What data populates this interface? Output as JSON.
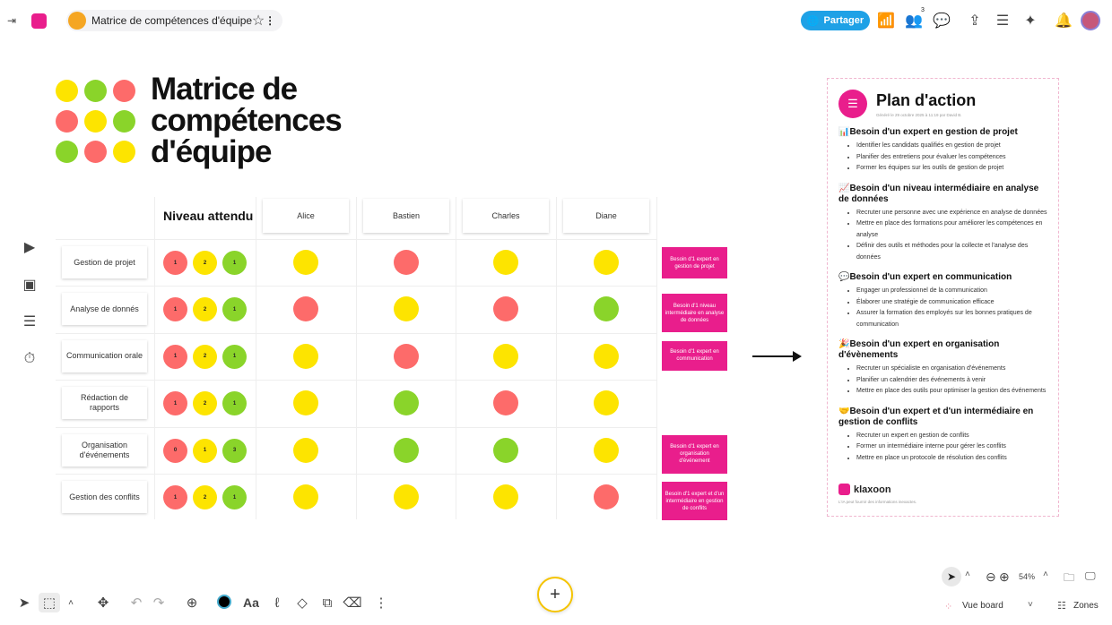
{
  "header": {
    "board_title": "Matrice de compétences d'équipe",
    "share_label": "Partager",
    "participants_count": "3",
    "icons": [
      "collapse-icon",
      "klaxoon-logo",
      "board-icon",
      "more-icon",
      "star-icon",
      "globe-icon",
      "stats-icon",
      "participants-icon",
      "chat-icon",
      "upload-icon",
      "settings-icon",
      "ai-sparkle-icon",
      "bell-icon",
      "avatar"
    ]
  },
  "board": {
    "title_lines": [
      "Matrice de",
      "compétences",
      "d'équipe"
    ],
    "logo_dots": [
      "Y",
      "G",
      "R",
      "R",
      "Y",
      "G",
      "G",
      "R",
      "Y"
    ],
    "expected_header": "Niveau attendu",
    "people": [
      "Alice",
      "Bastien",
      "Charles",
      "Diane"
    ],
    "rows": [
      {
        "label": "Gestion de projet",
        "levels": [
          "1",
          "2",
          "1"
        ],
        "people": [
          "Y",
          "R",
          "Y",
          "Y"
        ],
        "note": "Besoin d'1 expert en gestion de projet"
      },
      {
        "label": "Analyse de donnés",
        "levels": [
          "1",
          "2",
          "1"
        ],
        "people": [
          "R",
          "Y",
          "R",
          "G"
        ],
        "note": "Besoin d'1 niveau intermédiaire en analyse de données"
      },
      {
        "label": "Communication orale",
        "levels": [
          "1",
          "2",
          "1"
        ],
        "people": [
          "Y",
          "R",
          "Y",
          "Y"
        ],
        "note": "Besoin d'1 expert en communication"
      },
      {
        "label": "Rédaction de rapports",
        "levels": [
          "1",
          "2",
          "1"
        ],
        "people": [
          "Y",
          "G",
          "R",
          "Y"
        ],
        "note": ""
      },
      {
        "label": "Organisation d'événements",
        "levels": [
          "0",
          "1",
          "3"
        ],
        "people": [
          "Y",
          "G",
          "G",
          "Y"
        ],
        "note": "Besoin d'1 expert en organisation d'événement"
      },
      {
        "label": "Gestion des conflits",
        "levels": [
          "1",
          "2",
          "1"
        ],
        "people": [
          "Y",
          "Y",
          "Y",
          "R"
        ],
        "note": "Besoin d'1 expert et d'un intermédiaire en gestion de conflits"
      }
    ],
    "colors": {
      "R": "#fd6b6a",
      "Y": "#fde400",
      "G": "#8ad42a",
      "note": "#e91e8c"
    }
  },
  "plan": {
    "title": "Plan d'action",
    "generated": "Généré le 29 octobre 2025 à 11:19 par David B.",
    "sections": [
      {
        "emoji": "📊",
        "title": "Besoin d'un expert en gestion de projet",
        "items": [
          "Identifier les candidats qualifiés en gestion de projet",
          "Planifier des entretiens pour évaluer les compétences",
          "Former les équipes sur les outils de gestion de projet"
        ]
      },
      {
        "emoji": "📈",
        "title": "Besoin d'un niveau intermédiaire en analyse de données",
        "items": [
          "Recruter une personne avec une expérience en analyse de données",
          "Mettre en place des formations pour améliorer les compétences en analyse",
          "Définir des outils et méthodes pour la collecte et l'analyse des données"
        ]
      },
      {
        "emoji": "💬",
        "title": "Besoin d'un expert en communication",
        "items": [
          "Engager un professionnel de la communication",
          "Élaborer une stratégie de communication efficace",
          "Assurer la formation des employés sur les bonnes pratiques de communication"
        ]
      },
      {
        "emoji": "🎉",
        "title": "Besoin d'un expert en organisation d'évènements",
        "items": [
          "Recruter un spécialiste en organisation d'événements",
          "Planifier un calendrier des événements à venir",
          "Mettre en place des outils pour optimiser la gestion des événements"
        ]
      },
      {
        "emoji": "🤝",
        "title": "Besoin d'un expert et d'un intermédiaire en gestion de conflits",
        "items": [
          "Recruter un expert en gestion de conflits",
          "Former un intermédiaire interne pour gérer les conflits",
          "Mettre en place un protocole de résolution des conflits"
        ]
      }
    ],
    "brand": "klaxoon",
    "disclaimer": "L'IA peut fournir des informations inexactes."
  },
  "footer": {
    "zoom": "54%",
    "view_label": "Vue board",
    "zones_label": "Zones",
    "text_tool": "Aa"
  }
}
